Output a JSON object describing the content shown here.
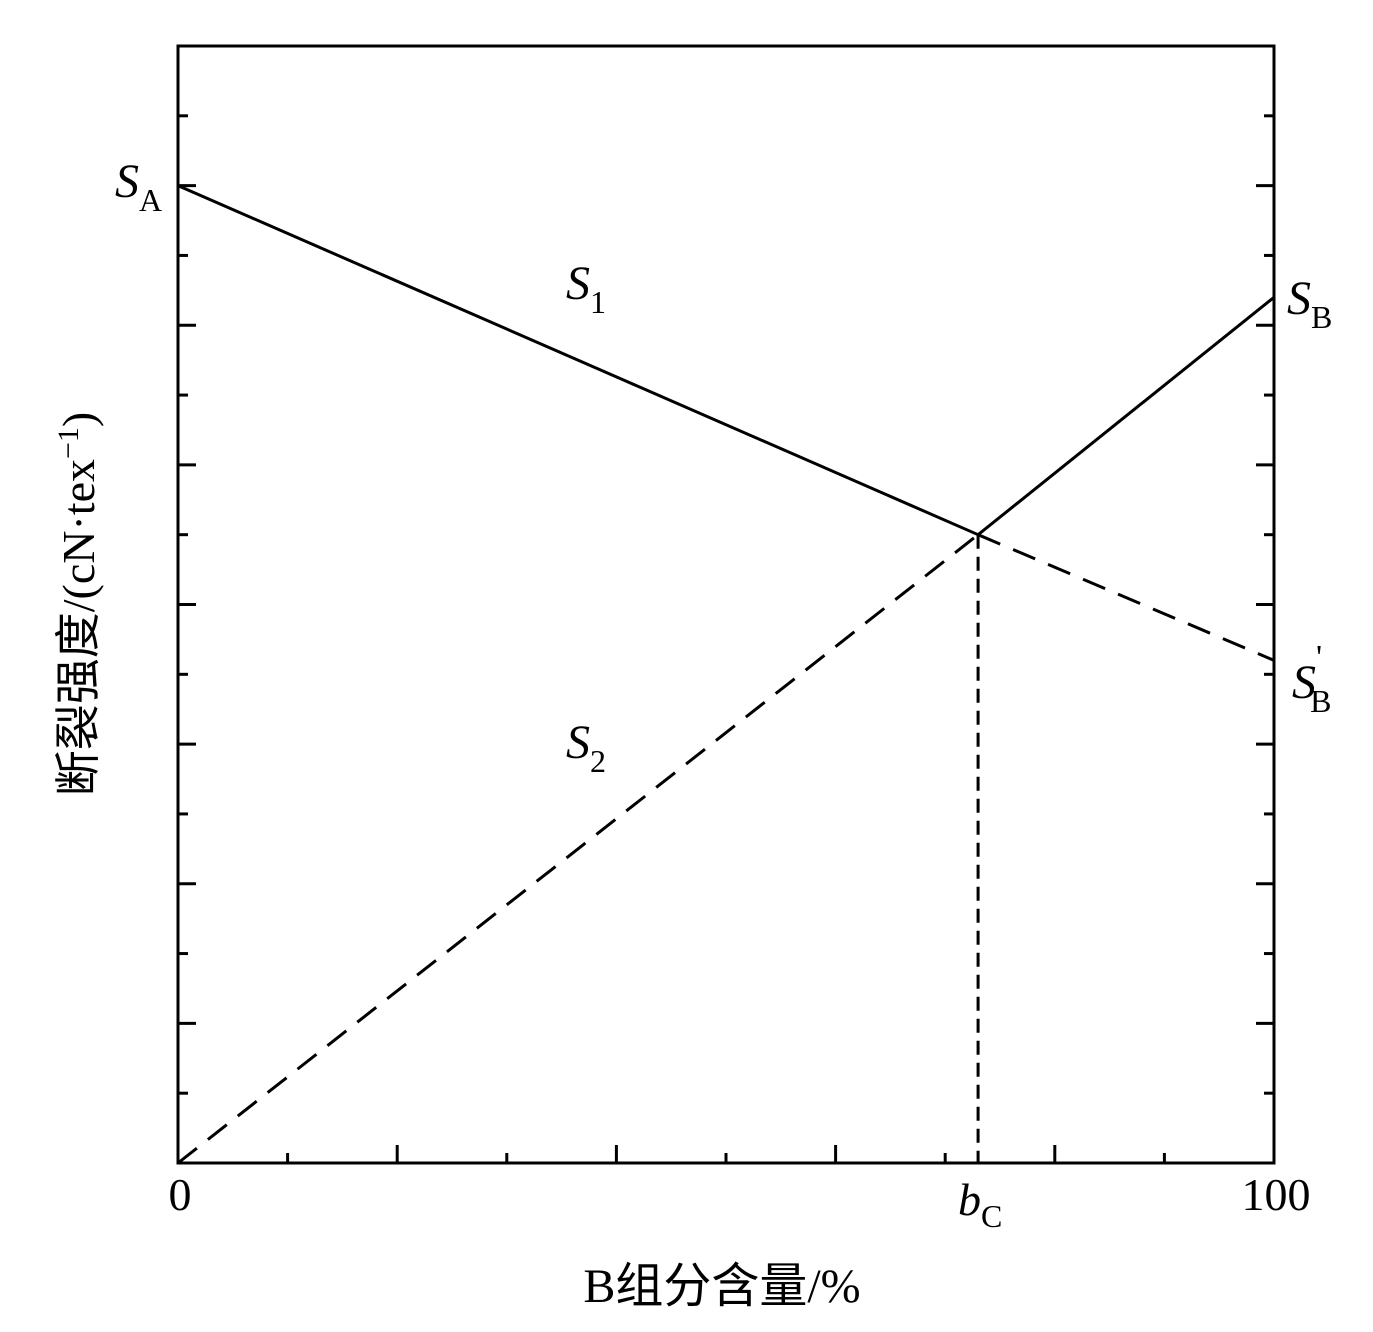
{
  "chart_data": {
    "type": "line",
    "xlabel": "B组分含量/%",
    "ylabel": "断裂强度/(cN·tex",
    "ylabel_sup": "−1",
    "ylabel_close": ")",
    "x_ticklabels": [
      "0",
      "100"
    ],
    "bc_label": "b",
    "bc_label_sub": "C",
    "xlim": [
      0,
      100
    ],
    "ylim": [
      0,
      16
    ],
    "bc": 73,
    "series": [
      {
        "name": "S1",
        "style": "solid",
        "x": [
          0,
          73
        ],
        "y": [
          14,
          9.0
        ]
      },
      {
        "name": "S2",
        "style": "solid",
        "x": [
          73,
          100
        ],
        "y": [
          9.0,
          12.4
        ]
      },
      {
        "name": "S1",
        "style": "dashed",
        "x": [
          73,
          100
        ],
        "y": [
          9.0,
          7.2
        ]
      },
      {
        "name": "S2",
        "style": "dashed",
        "x": [
          0,
          73
        ],
        "y": [
          0,
          9.0
        ]
      }
    ],
    "annotations": [
      {
        "main": "S",
        "sub": "A",
        "prime": ""
      },
      {
        "main": "S",
        "sub": "1",
        "prime": ""
      },
      {
        "main": "S",
        "sub": "B",
        "prime": ""
      },
      {
        "main": "S",
        "sub": "B",
        "prime": "'"
      },
      {
        "main": "S",
        "sub": "2",
        "prime": ""
      }
    ],
    "grid": false,
    "legend": "none"
  }
}
